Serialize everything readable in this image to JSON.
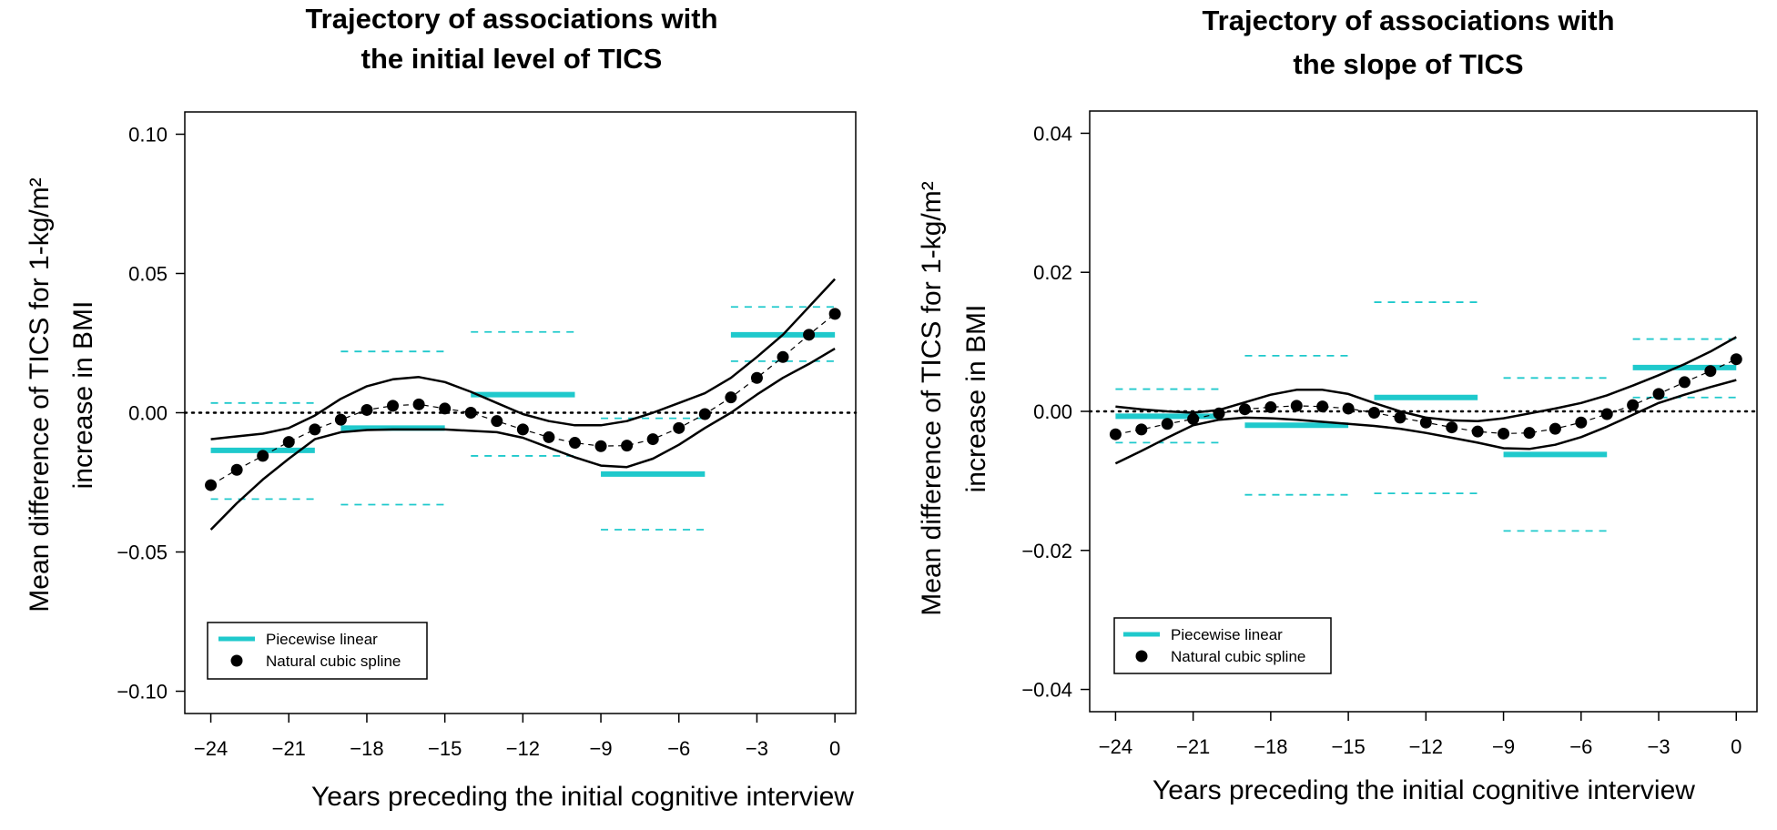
{
  "charts": [
    {
      "title_lines": [
        "Trajectory of associations with",
        "the initial level of TICS"
      ],
      "ylabel_lines": [
        "Mean difference of TICS for 1-kg/m²",
        "increase in BMI"
      ],
      "xlabel": "Years preceding the initial cognitive interview",
      "legend": {
        "piecewise": "Piecewise linear",
        "spline": "Natural cubic spline"
      }
    },
    {
      "title_lines": [
        "Trajectory of associations with",
        "the slope of TICS"
      ],
      "ylabel_lines": [
        "Mean difference of TICS for 1-kg/m²",
        "increase in BMI"
      ],
      "xlabel": "Years preceding the initial cognitive interview",
      "legend": {
        "piecewise": "Piecewise linear",
        "spline": "Natural cubic spline"
      }
    }
  ],
  "colors": {
    "piecewise": "#1fc9cc",
    "spline": "#000000"
  },
  "chart_data": [
    {
      "type": "line",
      "title": "Trajectory of associations with the initial level of TICS",
      "xlabel": "Years preceding the initial cognitive interview",
      "ylabel": "Mean difference of TICS for 1-kg/m² increase in BMI",
      "xlim": [
        -25,
        0.8
      ],
      "ylim": [
        -0.108,
        0.108
      ],
      "xticks": [
        -24,
        -21,
        -18,
        -15,
        -12,
        -9,
        -6,
        -3,
        0
      ],
      "xtick_labels": [
        "−24",
        "−21",
        "−18",
        "−15",
        "−12",
        "−9",
        "−6",
        "−3",
        "0"
      ],
      "yticks": [
        0.1,
        0.05,
        0.0,
        -0.05,
        -0.1
      ],
      "ytick_labels": [
        "0.10",
        "0.05",
        "0.00",
        "−0.05",
        "−0.10"
      ],
      "reference_line": 0,
      "legend_position": "bottom-left",
      "piecewise_linear": [
        {
          "x0": -24,
          "x1": -20,
          "estimate": -0.0135,
          "ci_low": -0.031,
          "ci_high": 0.0035
        },
        {
          "x0": -19,
          "x1": -15,
          "estimate": -0.0055,
          "ci_low": -0.033,
          "ci_high": 0.022
        },
        {
          "x0": -14,
          "x1": -10,
          "estimate": 0.0065,
          "ci_low": -0.0155,
          "ci_high": 0.029
        },
        {
          "x0": -9,
          "x1": -5,
          "estimate": -0.022,
          "ci_low": -0.042,
          "ci_high": -0.002
        },
        {
          "x0": -4,
          "x1": 0,
          "estimate": 0.028,
          "ci_low": 0.0185,
          "ci_high": 0.038
        }
      ],
      "spline": {
        "x": [
          -24,
          -23,
          -22,
          -21,
          -20,
          -19,
          -18,
          -17,
          -16,
          -15,
          -14,
          -13,
          -12,
          -11,
          -10,
          -9,
          -8,
          -7,
          -6,
          -5,
          -4,
          -3,
          -2,
          -1,
          0
        ],
        "estimate": [
          -0.026,
          -0.0205,
          -0.0155,
          -0.0105,
          -0.006,
          -0.0025,
          0.001,
          0.0025,
          0.003,
          0.0015,
          0.0,
          -0.003,
          -0.006,
          -0.0088,
          -0.0108,
          -0.012,
          -0.0118,
          -0.0095,
          -0.0055,
          -0.0005,
          0.0055,
          0.0125,
          0.02,
          0.028,
          0.0355
        ],
        "ci_upper": [
          -0.0095,
          -0.0085,
          -0.0075,
          -0.0055,
          -0.001,
          0.005,
          0.0095,
          0.012,
          0.0128,
          0.011,
          0.0075,
          0.0035,
          -0.0005,
          -0.003,
          -0.0045,
          -0.0045,
          -0.003,
          0.0,
          0.0035,
          0.007,
          0.0125,
          0.02,
          0.028,
          0.038,
          0.048
        ],
        "ci_lower": [
          -0.042,
          -0.0325,
          -0.024,
          -0.0165,
          -0.0095,
          -0.007,
          -0.0062,
          -0.006,
          -0.006,
          -0.006,
          -0.0065,
          -0.007,
          -0.009,
          -0.0125,
          -0.016,
          -0.019,
          -0.0195,
          -0.0165,
          -0.0115,
          -0.0055,
          0.0,
          0.0065,
          0.0125,
          0.0175,
          0.023
        ]
      }
    },
    {
      "type": "line",
      "title": "Trajectory of associations with the slope of TICS",
      "xlabel": "Years preceding the initial cognitive interview",
      "ylabel": "Mean difference of TICS for 1-kg/m² increase in BMI",
      "xlim": [
        -25,
        0.8
      ],
      "ylim": [
        -0.0432,
        0.0432
      ],
      "xticks": [
        -24,
        -21,
        -18,
        -15,
        -12,
        -9,
        -6,
        -3,
        0
      ],
      "xtick_labels": [
        "−24",
        "−21",
        "−18",
        "−15",
        "−12",
        "−9",
        "−6",
        "−3",
        "0"
      ],
      "yticks": [
        0.04,
        0.02,
        0.0,
        -0.02,
        -0.04
      ],
      "ytick_labels": [
        "0.04",
        "0.02",
        "0.00",
        "−0.02",
        "−0.04"
      ],
      "reference_line": 0,
      "legend_position": "bottom-left",
      "piecewise_linear": [
        {
          "x0": -24,
          "x1": -20,
          "estimate": -0.0007,
          "ci_low": -0.0045,
          "ci_high": 0.0032
        },
        {
          "x0": -19,
          "x1": -15,
          "estimate": -0.002,
          "ci_low": -0.012,
          "ci_high": 0.008
        },
        {
          "x0": -14,
          "x1": -10,
          "estimate": 0.002,
          "ci_low": -0.0118,
          "ci_high": 0.0157
        },
        {
          "x0": -9,
          "x1": -5,
          "estimate": -0.0062,
          "ci_low": -0.0172,
          "ci_high": 0.0048
        },
        {
          "x0": -4,
          "x1": 0,
          "estimate": 0.0063,
          "ci_low": 0.002,
          "ci_high": 0.0104
        }
      ],
      "spline": {
        "x": [
          -24,
          -23,
          -22,
          -21,
          -20,
          -19,
          -18,
          -17,
          -16,
          -15,
          -14,
          -13,
          -12,
          -11,
          -10,
          -9,
          -8,
          -7,
          -6,
          -5,
          -4,
          -3,
          -2,
          -1,
          0
        ],
        "estimate": [
          -0.0033,
          -0.0026,
          -0.0018,
          -0.0011,
          -0.0003,
          0.0003,
          0.0006,
          0.0008,
          0.0007,
          0.0004,
          -0.0002,
          -0.0009,
          -0.0016,
          -0.0023,
          -0.0029,
          -0.0032,
          -0.0031,
          -0.0025,
          -0.0016,
          -0.0004,
          0.0009,
          0.0025,
          0.0042,
          0.0058,
          0.0075
        ],
        "ci_upper": [
          0.0007,
          0.0003,
          0.0,
          -0.0002,
          0.0002,
          0.0013,
          0.0024,
          0.0031,
          0.0031,
          0.0025,
          0.0012,
          0.0,
          -0.0009,
          -0.0013,
          -0.0014,
          -0.001,
          -0.0003,
          0.0004,
          0.0012,
          0.0023,
          0.0037,
          0.0052,
          0.0068,
          0.0086,
          0.0107
        ],
        "ci_lower": [
          -0.0075,
          -0.0057,
          -0.0038,
          -0.002,
          -0.0012,
          -0.0009,
          -0.001,
          -0.0012,
          -0.0015,
          -0.0018,
          -0.0021,
          -0.0025,
          -0.0031,
          -0.0038,
          -0.0045,
          -0.0053,
          -0.0054,
          -0.0048,
          -0.0037,
          -0.0022,
          -0.0005,
          0.0012,
          0.0024,
          0.0035,
          0.0045
        ]
      }
    }
  ]
}
